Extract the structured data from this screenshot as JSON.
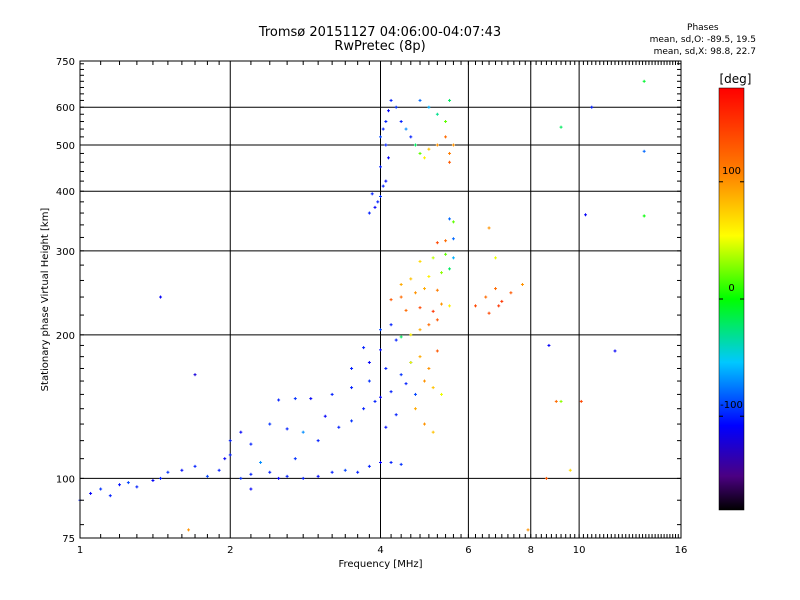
{
  "header": {
    "title_line1": "Tromsø 20151127 04:06:00-04:07:43",
    "title_line2": "RwPretec (8p)"
  },
  "phase_box": {
    "title": "Phases",
    "line_o": "mean, sd,O: -89.5, 19.5",
    "line_x": "mean, sd,X:  98.8, 22.7"
  },
  "chart_data": {
    "type": "scatter",
    "xlabel": "Frequency [MHz]",
    "ylabel": "Stationary phase Virtual Height [km]",
    "x_scale": "log",
    "y_scale": "log",
    "xlim": [
      1,
      16
    ],
    "ylim": [
      75,
      750
    ],
    "x_ticks": [
      1,
      2,
      4,
      6,
      8,
      10,
      16
    ],
    "x_tick_labels": [
      "1",
      "2",
      "4",
      "6",
      "8",
      "10",
      "16"
    ],
    "y_ticks": [
      75,
      100,
      200,
      300,
      400,
      500,
      600,
      750
    ],
    "y_tick_labels": [
      "75",
      "100",
      "200",
      "300",
      "400",
      "500",
      "600",
      "750"
    ],
    "grid": true,
    "colorbar": {
      "label": "[deg]",
      "range": [
        -180,
        180
      ],
      "ticks": [
        100,
        0,
        -100
      ],
      "tick_labels": [
        "100",
        "0",
        "-100"
      ]
    },
    "series": [
      {
        "points": [
          [
            1.0,
            90,
            -100
          ],
          [
            1.05,
            93,
            -110
          ],
          [
            1.1,
            95,
            -95
          ],
          [
            1.15,
            92,
            -100
          ],
          [
            1.2,
            97,
            -105
          ],
          [
            1.25,
            98,
            -90
          ],
          [
            1.3,
            96,
            -100
          ],
          [
            1.4,
            99,
            -110
          ],
          [
            1.45,
            100,
            -100
          ],
          [
            1.5,
            103,
            -95
          ],
          [
            1.6,
            104,
            -105
          ],
          [
            1.7,
            106,
            -100
          ],
          [
            1.8,
            101,
            -90
          ],
          [
            1.9,
            104,
            -100
          ],
          [
            1.95,
            110,
            -110
          ],
          [
            2.0,
            112,
            -100
          ],
          [
            2.1,
            100,
            -95
          ],
          [
            2.2,
            102,
            -100
          ],
          [
            2.3,
            108,
            -70
          ],
          [
            2.4,
            103,
            -100
          ],
          [
            2.5,
            100,
            -110
          ],
          [
            2.6,
            101,
            -100
          ],
          [
            2.7,
            110,
            -95
          ],
          [
            2.8,
            100,
            -100
          ],
          [
            3.0,
            101,
            -105
          ],
          [
            3.2,
            103,
            -100
          ],
          [
            3.4,
            104,
            -90
          ],
          [
            3.6,
            103,
            -100
          ],
          [
            3.8,
            106,
            -100
          ],
          [
            4.0,
            108,
            -110
          ],
          [
            4.2,
            108,
            -100
          ],
          [
            4.4,
            107,
            -95
          ],
          [
            2.0,
            120,
            -100
          ],
          [
            2.1,
            125,
            -110
          ],
          [
            2.2,
            118,
            -100
          ],
          [
            2.4,
            130,
            -95
          ],
          [
            2.6,
            127,
            -100
          ],
          [
            2.8,
            125,
            -70
          ],
          [
            3.0,
            120,
            -100
          ],
          [
            3.1,
            135,
            -110
          ],
          [
            3.3,
            128,
            -100
          ],
          [
            3.5,
            132,
            -95
          ],
          [
            3.7,
            140,
            -100
          ],
          [
            3.9,
            145,
            -100
          ],
          [
            4.1,
            128,
            -105
          ],
          [
            4.3,
            136,
            -100
          ],
          [
            2.5,
            146,
            -100
          ],
          [
            2.7,
            147,
            -95
          ],
          [
            2.9,
            147,
            -110
          ],
          [
            3.2,
            150,
            -100
          ],
          [
            3.5,
            155,
            -100
          ],
          [
            3.8,
            160,
            -95
          ],
          [
            4.0,
            148,
            -110
          ],
          [
            4.2,
            152,
            -100
          ],
          [
            4.5,
            158,
            -100
          ],
          [
            4.7,
            150,
            -90
          ],
          [
            3.5,
            170,
            -100
          ],
          [
            3.8,
            175,
            -110
          ],
          [
            4.1,
            170,
            -100
          ],
          [
            4.4,
            165,
            -95
          ],
          [
            4.6,
            175,
            -100
          ],
          [
            3.7,
            188,
            -100
          ],
          [
            4.0,
            186,
            -105
          ],
          [
            4.3,
            195,
            -100
          ],
          [
            4.0,
            205,
            -90
          ],
          [
            4.2,
            210,
            -100
          ],
          [
            4.4,
            198,
            -20
          ],
          [
            4.6,
            200,
            60
          ],
          [
            4.8,
            205,
            90
          ],
          [
            5.0,
            210,
            120
          ],
          [
            5.2,
            215,
            130
          ],
          [
            4.5,
            225,
            120
          ],
          [
            4.8,
            228,
            140
          ],
          [
            5.1,
            224,
            150
          ],
          [
            5.3,
            232,
            100
          ],
          [
            5.5,
            230,
            60
          ],
          [
            4.2,
            237,
            130
          ],
          [
            4.4,
            240,
            120
          ],
          [
            4.7,
            245,
            100
          ],
          [
            4.9,
            250,
            90
          ],
          [
            5.2,
            248,
            110
          ],
          [
            4.4,
            255,
            90
          ],
          [
            4.6,
            262,
            80
          ],
          [
            5.0,
            265,
            60
          ],
          [
            5.3,
            270,
            30
          ],
          [
            5.5,
            275,
            -20
          ],
          [
            4.8,
            285,
            70
          ],
          [
            5.1,
            290,
            40
          ],
          [
            5.4,
            295,
            20
          ],
          [
            5.6,
            290,
            -60
          ],
          [
            5.2,
            312,
            140
          ],
          [
            5.4,
            315,
            120
          ],
          [
            5.6,
            318,
            -80
          ],
          [
            5.6,
            345,
            20
          ],
          [
            5.5,
            350,
            -80
          ],
          [
            4.6,
            175,
            50
          ],
          [
            4.8,
            180,
            90
          ],
          [
            5.0,
            170,
            100
          ],
          [
            5.2,
            185,
            130
          ],
          [
            4.9,
            160,
            100
          ],
          [
            5.1,
            155,
            80
          ],
          [
            5.3,
            150,
            50
          ],
          [
            4.7,
            140,
            90
          ],
          [
            4.9,
            130,
            100
          ],
          [
            5.1,
            125,
            80
          ],
          [
            3.8,
            360,
            -100
          ],
          [
            3.9,
            370,
            -110
          ],
          [
            3.95,
            380,
            -100
          ],
          [
            4.0,
            390,
            -95
          ],
          [
            3.85,
            395,
            -100
          ],
          [
            4.05,
            410,
            -100
          ],
          [
            4.1,
            420,
            -105
          ],
          [
            4.0,
            450,
            -100
          ],
          [
            4.15,
            470,
            -110
          ],
          [
            4.1,
            500,
            -100
          ],
          [
            4.0,
            520,
            -90
          ],
          [
            4.05,
            540,
            -100
          ],
          [
            4.1,
            560,
            -100
          ],
          [
            4.15,
            590,
            -110
          ],
          [
            4.2,
            620,
            -100
          ],
          [
            4.3,
            600,
            -95
          ],
          [
            4.4,
            560,
            -100
          ],
          [
            4.5,
            540,
            -70
          ],
          [
            4.6,
            520,
            -100
          ],
          [
            4.7,
            500,
            -20
          ],
          [
            4.8,
            480,
            20
          ],
          [
            4.9,
            470,
            60
          ],
          [
            5.0,
            490,
            80
          ],
          [
            5.2,
            500,
            100
          ],
          [
            5.4,
            520,
            120
          ],
          [
            5.5,
            480,
            110
          ],
          [
            5.5,
            460,
            130
          ],
          [
            5.6,
            500,
            100
          ],
          [
            5.4,
            560,
            20
          ],
          [
            5.2,
            580,
            -30
          ],
          [
            5.0,
            600,
            -60
          ],
          [
            4.8,
            620,
            -80
          ],
          [
            5.5,
            620,
            -20
          ],
          [
            6.2,
            230,
            140
          ],
          [
            6.5,
            240,
            120
          ],
          [
            6.8,
            250,
            120
          ],
          [
            7.0,
            235,
            150
          ],
          [
            7.3,
            245,
            130
          ],
          [
            7.7,
            255,
            100
          ],
          [
            6.6,
            222,
            140
          ],
          [
            6.9,
            230,
            150
          ],
          [
            6.6,
            335,
            100
          ],
          [
            6.8,
            290,
            50
          ],
          [
            7.9,
            78,
            100
          ],
          [
            8.6,
            100,
            130
          ],
          [
            9.0,
            145,
            120
          ],
          [
            9.2,
            145,
            30
          ],
          [
            9.6,
            104,
            70
          ],
          [
            10.1,
            145,
            140
          ],
          [
            8.7,
            190,
            -110
          ],
          [
            10.3,
            357,
            -110
          ],
          [
            10.6,
            600,
            -100
          ],
          [
            11.8,
            185,
            -110
          ],
          [
            9.2,
            545,
            -20
          ],
          [
            13.5,
            680,
            -10
          ],
          [
            13.5,
            485,
            -80
          ],
          [
            13.5,
            355,
            0
          ],
          [
            1.45,
            240,
            -110
          ],
          [
            1.7,
            165,
            -120
          ],
          [
            2.2,
            95,
            -110
          ],
          [
            1.65,
            78,
            100
          ]
        ]
      }
    ]
  }
}
